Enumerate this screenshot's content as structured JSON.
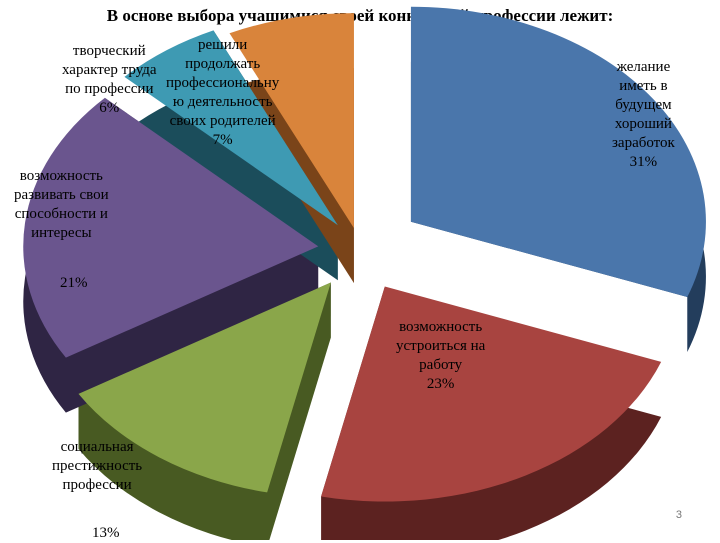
{
  "chart_data": {
    "type": "pie",
    "title": "В основе выбора учащимися своей конкретной профессии лежит:",
    "slices": [
      {
        "label_lines": [
          "желание",
          "иметь в",
          "будущем",
          "хороший",
          "заработок"
        ],
        "value_text": "31%",
        "value": 31,
        "color": "#4a76ab",
        "side_color": "#233d5c"
      },
      {
        "label_lines": [
          "возможность",
          "устроиться на",
          "работу"
        ],
        "value_text": "23%",
        "value": 23,
        "color": "#a84440",
        "side_color": "#5c2220"
      },
      {
        "label_lines": [
          "социальная",
          "престижность",
          "профессии"
        ],
        "value_text": "13%",
        "value": 13,
        "color": "#8aa64a",
        "side_color": "#485a22"
      },
      {
        "label_lines": [
          "возможность",
          "развивать свои",
          "способности и",
          "интересы"
        ],
        "value_text": "21%",
        "value": 21,
        "color": "#6a558e",
        "side_color": "#2f2544"
      },
      {
        "label_lines": [
          "творческий",
          "характер труда",
          "по профессии"
        ],
        "value_text": "6%",
        "value": 6,
        "color": "#3e9ab3",
        "side_color": "#1b4d5b"
      },
      {
        "label_lines": [
          "решили",
          "продолжать",
          "профессиональну",
          "ю деятельность",
          "своих родителей"
        ],
        "value_text": "7%",
        "value": 7,
        "color": "#d9843b",
        "side_color": "#7a4419"
      }
    ]
  },
  "slide_number": "3"
}
